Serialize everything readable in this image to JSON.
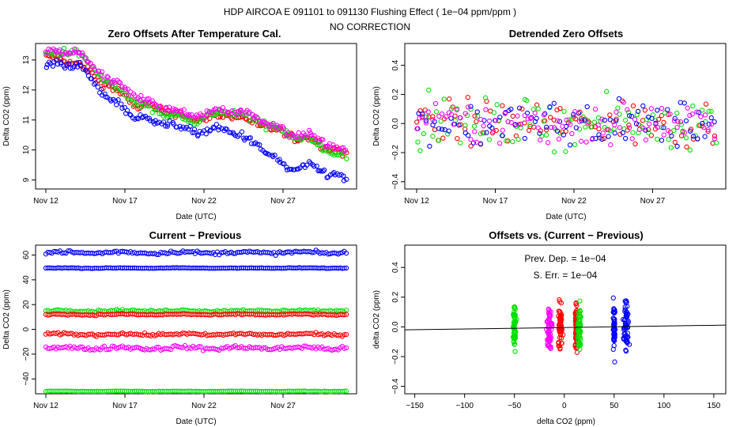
{
  "header": {
    "line1": "HDP   AIRCOA E   091101 to 091130   Flushing Effect ( 1e−04 ppm/ppm )",
    "line2": "NO CORRECTION"
  },
  "colors": {
    "series1": "#ff0000",
    "series2": "#00e000",
    "series3": "#0000ff",
    "series4": "#ff00ff",
    "axis": "#000000"
  },
  "chart_data": [
    {
      "id": "zero",
      "type": "scatter",
      "title": "Zero Offsets After Temperature Cal.",
      "xlabel": "Date (UTC)",
      "ylabel": "Delta CO2 (ppm)",
      "xticks": [
        "Nov 12",
        "Nov 17",
        "Nov 22",
        "Nov 27"
      ],
      "yticks": [
        "9",
        "10",
        "11",
        "12",
        "13"
      ],
      "ylim": [
        8.7,
        13.55
      ],
      "series": [
        {
          "name": "red",
          "color": "#ff0000",
          "trend": [
            13.1,
            12.9,
            12.2,
            11.5,
            11.3,
            11.0,
            11.2,
            10.9,
            10.5,
            10.3,
            9.8
          ],
          "scatter": 0.12
        },
        {
          "name": "green",
          "color": "#00e000",
          "trend": [
            13.2,
            13.3,
            12.3,
            11.6,
            11.2,
            11.0,
            11.3,
            11.0,
            10.6,
            10.2,
            9.7
          ],
          "scatter": 0.12
        },
        {
          "name": "blue",
          "color": "#0000ff",
          "trend": [
            12.8,
            12.9,
            11.8,
            11.1,
            10.9,
            10.6,
            10.7,
            10.2,
            9.4,
            9.4,
            9.0
          ],
          "scatter": 0.12
        },
        {
          "name": "magenta",
          "color": "#ff00ff",
          "trend": [
            13.2,
            13.3,
            12.4,
            11.8,
            11.4,
            11.1,
            11.4,
            11.1,
            10.6,
            10.4,
            9.9
          ],
          "scatter": 0.12
        }
      ]
    },
    {
      "id": "detr",
      "type": "scatter",
      "title": "Detrended Zero Offsets",
      "xlabel": "Date (UTC)",
      "ylabel": "Delta CO2 (ppm)",
      "xticks": [
        "Nov 12",
        "Nov 17",
        "Nov 22",
        "Nov 27"
      ],
      "yticks": [
        "−0.4",
        "−0.2",
        "0.0",
        "0.2",
        "0.4"
      ],
      "ylim": [
        -0.45,
        0.55
      ],
      "series": [
        {
          "name": "red",
          "color": "#ff0000",
          "center": 0.0,
          "scatter": 0.15
        },
        {
          "name": "green",
          "color": "#00e000",
          "center": 0.0,
          "scatter": 0.15
        },
        {
          "name": "blue",
          "color": "#0000ff",
          "center": 0.0,
          "scatter": 0.15
        },
        {
          "name": "magenta",
          "color": "#ff00ff",
          "center": 0.0,
          "scatter": 0.15
        }
      ]
    },
    {
      "id": "curr",
      "type": "scatter",
      "title": "Current − Previous",
      "xlabel": "Date (UTC)",
      "ylabel": "Delta CO2 (ppm)",
      "xticks": [
        "Nov 12",
        "Nov 17",
        "Nov 22",
        "Nov 27"
      ],
      "yticks": [
        "−40",
        "−20",
        "0",
        "20",
        "40",
        "60"
      ],
      "ylim": [
        -52,
        68
      ],
      "series": [
        {
          "name": "blue-a",
          "color": "#0000ff",
          "center": 62,
          "scatter": 1.2
        },
        {
          "name": "blue-b",
          "color": "#0000ff",
          "center": 49.5,
          "scatter": 0.25
        },
        {
          "name": "green-a",
          "color": "#00e000",
          "center": 15,
          "scatter": 0.8
        },
        {
          "name": "red-a",
          "color": "#ff0000",
          "center": 12,
          "scatter": 0.6
        },
        {
          "name": "red-b",
          "color": "#ff0000",
          "center": -4,
          "scatter": 1.0
        },
        {
          "name": "magenta-a",
          "color": "#ff00ff",
          "center": -15,
          "scatter": 1.5
        },
        {
          "name": "green-b",
          "color": "#00e000",
          "center": -50,
          "scatter": 0.2
        }
      ]
    },
    {
      "id": "offs",
      "type": "scatter",
      "title": "Offsets vs. (Current − Previous)",
      "xlabel": "delta CO2 (ppm)",
      "ylabel": "delta CO2 (ppm)",
      "xticks": [
        "−150",
        "−100",
        "−50",
        "0",
        "50",
        "100",
        "150"
      ],
      "xtick_values": [
        -150,
        -100,
        -50,
        0,
        50,
        100,
        150
      ],
      "xlim": [
        -160,
        162
      ],
      "yticks": [
        "−0.4",
        "−0.2",
        "0.0",
        "0.2",
        "0.4"
      ],
      "ylim": [
        -0.45,
        0.55
      ],
      "annotations": [
        "Prev. Dep. =  1e−04",
        "S. Err. =  1e−04"
      ],
      "fit_line": {
        "x": [
          -160,
          162
        ],
        "y": [
          -0.02,
          0.012
        ]
      },
      "clusters": [
        {
          "color": "#00e000",
          "x": -50,
          "spread": 1.5
        },
        {
          "color": "#ff00ff",
          "x": -15,
          "spread": 2.5
        },
        {
          "color": "#ff0000",
          "x": -4,
          "spread": 2.0
        },
        {
          "color": "#ff0000",
          "x": 12,
          "spread": 1.0
        },
        {
          "color": "#00e000",
          "x": 15,
          "spread": 1.5
        },
        {
          "color": "#0000ff",
          "x": 50,
          "spread": 0.8
        },
        {
          "color": "#0000ff",
          "x": 62,
          "spread": 2.5
        }
      ]
    }
  ]
}
